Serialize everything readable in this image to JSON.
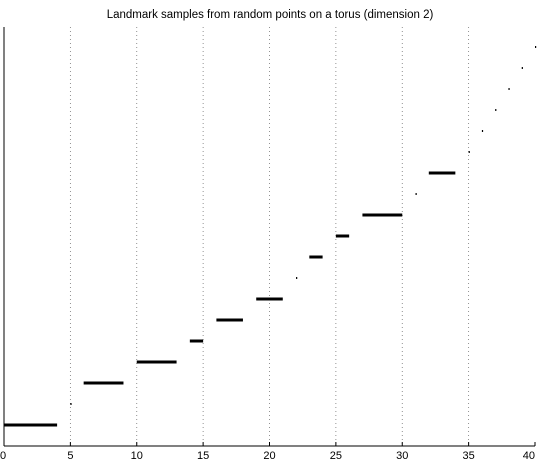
{
  "chart_data": {
    "type": "barcode",
    "title": "Landmark samples from random points on a torus (dimension 2)",
    "xlabel": "",
    "ylabel": "",
    "xlim": [
      0,
      40
    ],
    "xticks": [
      0,
      5,
      10,
      15,
      20,
      25,
      30,
      35,
      40
    ],
    "grid": "vertical-dotted",
    "intervals": [
      {
        "start": 0,
        "end": 4
      },
      {
        "start": 5,
        "end": 5
      },
      {
        "start": 6,
        "end": 9
      },
      {
        "start": 10,
        "end": 13
      },
      {
        "start": 14,
        "end": 15
      },
      {
        "start": 16,
        "end": 18
      },
      {
        "start": 19,
        "end": 21
      },
      {
        "start": 22,
        "end": 22
      },
      {
        "start": 23,
        "end": 24
      },
      {
        "start": 25,
        "end": 26
      },
      {
        "start": 27,
        "end": 30
      },
      {
        "start": 31,
        "end": 31
      },
      {
        "start": 32,
        "end": 34
      },
      {
        "start": 35,
        "end": 35
      },
      {
        "start": 36,
        "end": 36
      },
      {
        "start": 37,
        "end": 37
      },
      {
        "start": 38,
        "end": 38
      },
      {
        "start": 39,
        "end": 39
      },
      {
        "start": 40,
        "end": 40
      }
    ]
  }
}
